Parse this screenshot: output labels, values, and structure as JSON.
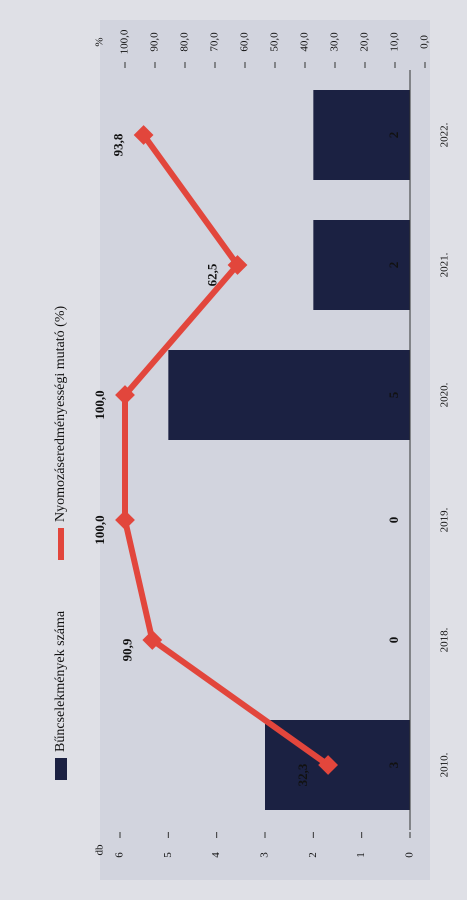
{
  "chart_data": {
    "type": "bar_line",
    "y_label": "db",
    "y2_label": "%",
    "categories": [
      "2010.",
      "2018.",
      "2019.",
      "2020.",
      "2021.",
      "2022."
    ],
    "series": [
      {
        "name": "Bűncselekmények száma",
        "type": "bar",
        "color": "#1b2142",
        "values": [
          3,
          0,
          0,
          5,
          2,
          2
        ]
      },
      {
        "name": "Nyomozáseredményességi mutató (%)",
        "type": "line",
        "axis": "y2",
        "color": "#e2463c",
        "values": [
          32.3,
          90.9,
          100.0,
          100.0,
          62.5,
          93.8
        ],
        "value_labels": [
          "32,3",
          "90,9",
          "100,0",
          "100,0",
          "62,5",
          "93,8"
        ]
      }
    ],
    "ylim": [
      0,
      6
    ],
    "yticks": [
      0,
      1,
      2,
      3,
      4,
      5,
      6
    ],
    "y2lim": [
      0,
      100
    ],
    "y2ticks": [
      {
        "value": 0,
        "label": "0,0"
      },
      {
        "value": 10,
        "label": "10,0"
      },
      {
        "value": 20,
        "label": "20,0"
      },
      {
        "value": 30,
        "label": "30,0"
      },
      {
        "value": 40,
        "label": "40,0"
      },
      {
        "value": 50,
        "label": "50,0"
      },
      {
        "value": 60,
        "label": "60,0"
      },
      {
        "value": 70,
        "label": "70,0"
      },
      {
        "value": 80,
        "label": "80,0"
      },
      {
        "value": 90,
        "label": "90,0"
      },
      {
        "value": 100,
        "label": "100,0"
      }
    ]
  }
}
